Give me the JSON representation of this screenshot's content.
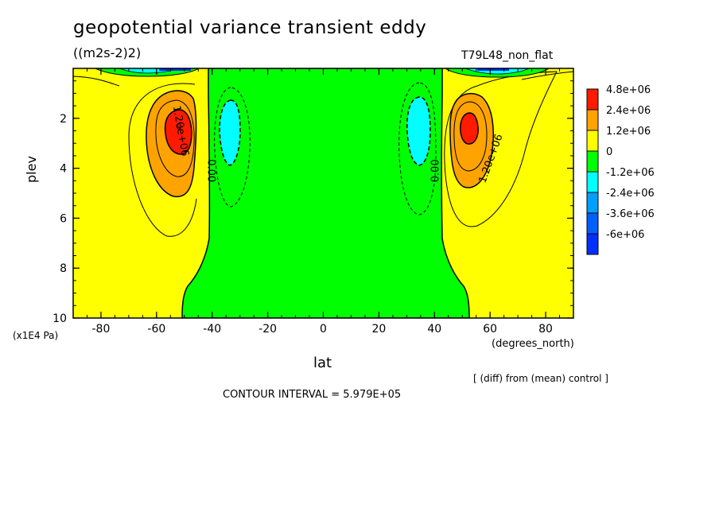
{
  "chart_data": {
    "type": "heatmap",
    "title": "geopotential variance transient eddy",
    "units": "((m2s-2)2)",
    "run_label": "T79L48_non_flat",
    "xlabel": "lat",
    "x_units": "(degrees_north)",
    "ylabel": "plev",
    "y_units": "(x1E4 Pa)",
    "xlim": [
      -90,
      90
    ],
    "ylim": [
      10,
      0
    ],
    "x_ticks": [
      -80,
      -60,
      -40,
      -20,
      0,
      20,
      40,
      60,
      80
    ],
    "y_ticks": [
      2,
      4,
      6,
      8,
      10
    ],
    "contour_labels": [
      "1.20e+06",
      "0.00",
      "0.00",
      "1.20e+06"
    ],
    "legend": [
      {
        "label": "4.8e+06",
        "color": "#ff1a00"
      },
      {
        "label": "2.4e+06",
        "color": "#ffa300"
      },
      {
        "label": "1.2e+06",
        "color": "#ffff00"
      },
      {
        "label": "0",
        "color": "#00ff00"
      },
      {
        "label": "-1.2e+06",
        "color": "#00ffff"
      },
      {
        "label": "-2.4e+06",
        "color": "#00a0ff"
      },
      {
        "label": "-3.6e+06",
        "color": "#0060ff"
      },
      {
        "label": "-6e+06",
        "color": "#0030ff"
      }
    ],
    "contour_interval_text": "CONTOUR INTERVAL = 5.979E+05",
    "note": "[ (diff) from (mean) control ]"
  }
}
